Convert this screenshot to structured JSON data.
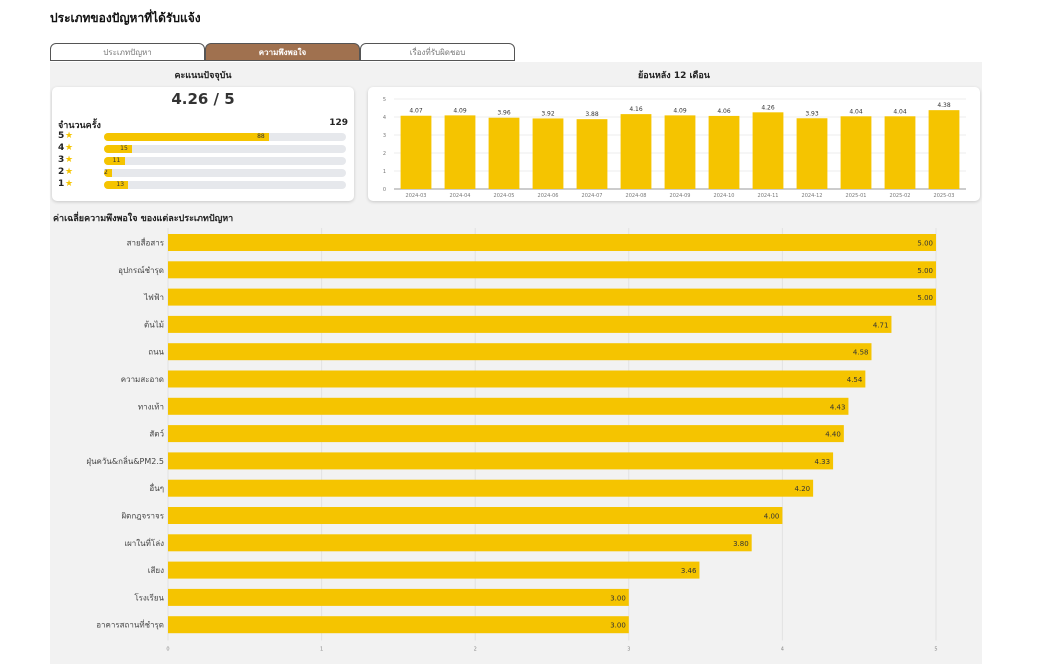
{
  "page_title": "ประเภทของปัญหาที่ได้รับแจ้ง",
  "tabs": [
    {
      "label": "ประเภทปัญหา",
      "active": false
    },
    {
      "label": "ความพึงพอใจ",
      "active": true
    },
    {
      "label": "เรื่องที่รับผิดชอบ",
      "active": false
    }
  ],
  "current": {
    "title": "คะแนนปัจจุบัน",
    "score": "4.26 / 5",
    "count_label": "จำนวนครั้ง",
    "count_value": "129",
    "stars": [
      {
        "star": "5",
        "count": 88
      },
      {
        "star": "4",
        "count": 15
      },
      {
        "star": "3",
        "count": 11
      },
      {
        "star": "2",
        "count": 2
      },
      {
        "star": "1",
        "count": 13
      }
    ]
  },
  "history_title": "ย้อนหลัง 12 เดือน",
  "by_type_title": "ค่าเฉลี่ยความพึงพอใจ ของแต่ละประเภทปัญหา",
  "colors": {
    "bar": "#f5c400",
    "tab_active": "#a0714f",
    "panel": "#f2f2f2"
  },
  "chart_data": [
    {
      "type": "bar",
      "categories": [
        "2024-03",
        "2024-04",
        "2024-05",
        "2024-06",
        "2024-07",
        "2024-08",
        "2024-09",
        "2024-10",
        "2024-11",
        "2024-12",
        "2025-01",
        "2025-02",
        "2025-03"
      ],
      "values": [
        4.07,
        4.09,
        3.96,
        3.92,
        3.88,
        4.16,
        4.09,
        4.06,
        4.26,
        3.93,
        4.04,
        4.04,
        4.38
      ],
      "value_labels": [
        "4.07",
        "4.09",
        "3.96",
        "3.92",
        "3.88",
        "4.16",
        "4.09",
        "4.06",
        "4.26",
        "3.93",
        "4.04",
        "4.04",
        "4.38"
      ],
      "ylim": [
        0,
        5
      ],
      "yticks": [
        "0",
        "1",
        "2",
        "3",
        "4",
        "5"
      ],
      "grid": true
    },
    {
      "type": "bar",
      "orientation": "horizontal",
      "categories": [
        "สายสื่อสาร",
        "อุปกรณ์ชำรุด",
        "ไฟฟ้า",
        "ต้นไม้",
        "ถนน",
        "ความสะอาด",
        "ทางเท้า",
        "สัตว์",
        "ฝุ่นควัน&กลิ่น&PM2.5",
        "อื่นๆ",
        "ผิดกฎจราจร",
        "เผาในที่โล่ง",
        "เสียง",
        "โรงเรียน",
        "อาคารสถานที่ชำรุด"
      ],
      "values": [
        5.0,
        5.0,
        5.0,
        4.71,
        4.58,
        4.54,
        4.43,
        4.4,
        4.33,
        4.2,
        4.0,
        3.8,
        3.46,
        3.0,
        3.0
      ],
      "value_labels": [
        "5.00",
        "5.00",
        "5.00",
        "4.71",
        "4.58",
        "4.54",
        "4.43",
        "4.40",
        "4.33",
        "4.20",
        "4.00",
        "3.80",
        "3.46",
        "3.00",
        "3.00"
      ],
      "xlim": [
        0,
        5
      ],
      "xticks": [
        "0",
        "1",
        "2",
        "3",
        "4",
        "5"
      ],
      "grid": true
    }
  ]
}
